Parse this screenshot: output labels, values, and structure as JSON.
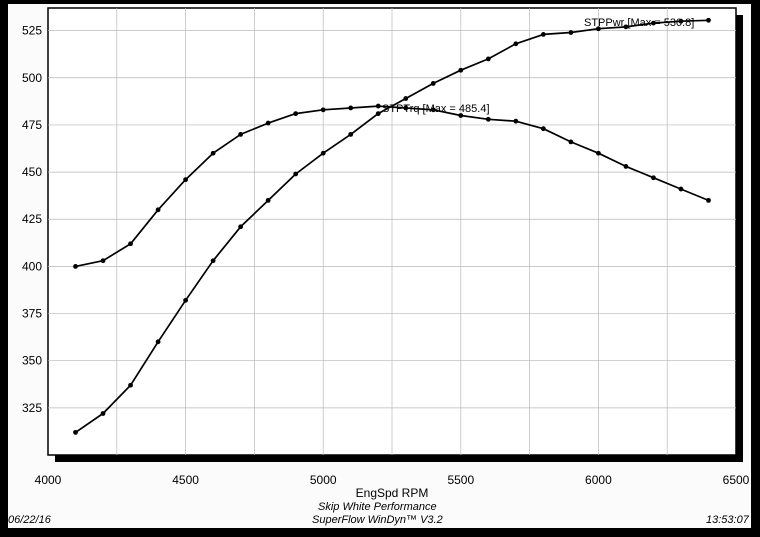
{
  "chart_data": {
    "type": "line",
    "xlabel": "EngSpd RPM",
    "ylabel": "",
    "xlim": [
      4000,
      6500
    ],
    "ylim": [
      300,
      537
    ],
    "x_ticks": [
      4000,
      4500,
      5000,
      5500,
      6000,
      6500
    ],
    "y_ticks": [
      325,
      350,
      375,
      400,
      425,
      450,
      475,
      500,
      525
    ],
    "grid": true,
    "x": [
      4100,
      4200,
      4300,
      4400,
      4500,
      4600,
      4700,
      4800,
      4900,
      5000,
      5100,
      5200,
      5300,
      5400,
      5500,
      5600,
      5700,
      5800,
      5900,
      6000,
      6100,
      6200,
      6300,
      6400
    ],
    "series": [
      {
        "name": "STPPwr",
        "annotation": "STPPwr [Max = 530.8]",
        "values": [
          312,
          322,
          337,
          360,
          382,
          403,
          421,
          435,
          449,
          460,
          470,
          481,
          489,
          497,
          504,
          510,
          518,
          523,
          524,
          526,
          527,
          529,
          530,
          530.5
        ]
      },
      {
        "name": "STPTrq",
        "annotation": "STPTrq [Max = 485.4]",
        "values": [
          400,
          403,
          412,
          430,
          446,
          460,
          470,
          476,
          481,
          483,
          484,
          485,
          484,
          483,
          480,
          478,
          477,
          473,
          466,
          460,
          453,
          447,
          441,
          435
        ]
      }
    ]
  },
  "footer": {
    "date": "06/22/16",
    "company": "Skip White Performance",
    "software": "SuperFlow WinDyn™ V3.2",
    "time": "13:53:07"
  }
}
